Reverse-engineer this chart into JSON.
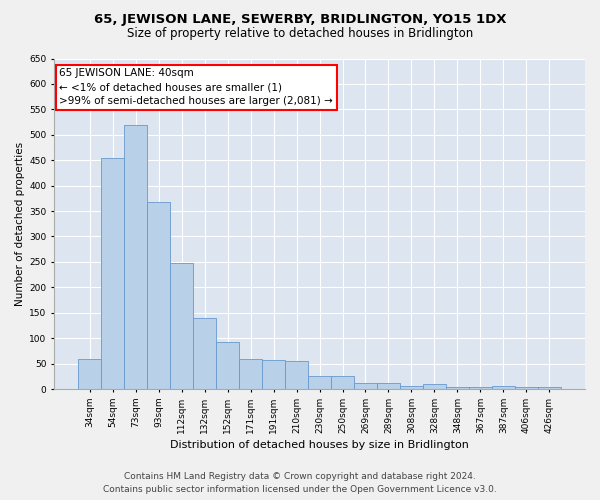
{
  "title": "65, JEWISON LANE, SEWERBY, BRIDLINGTON, YO15 1DX",
  "subtitle": "Size of property relative to detached houses in Bridlington",
  "xlabel": "Distribution of detached houses by size in Bridlington",
  "ylabel": "Number of detached properties",
  "categories": [
    "34sqm",
    "54sqm",
    "73sqm",
    "93sqm",
    "112sqm",
    "132sqm",
    "152sqm",
    "171sqm",
    "191sqm",
    "210sqm",
    "230sqm",
    "250sqm",
    "269sqm",
    "289sqm",
    "308sqm",
    "328sqm",
    "348sqm",
    "367sqm",
    "387sqm",
    "406sqm",
    "426sqm"
  ],
  "values": [
    60,
    455,
    520,
    368,
    248,
    140,
    92,
    60,
    57,
    55,
    26,
    26,
    11,
    12,
    6,
    9,
    4,
    4,
    5,
    4,
    4
  ],
  "bar_color": "#b8d0e8",
  "bar_edge_color": "#6699cc",
  "annotation_line1": "65 JEWISON LANE: 40sqm",
  "annotation_line2": "← <1% of detached houses are smaller (1)",
  "annotation_line3": ">99% of semi-detached houses are larger (2,081) →",
  "ylim": [
    0,
    650
  ],
  "yticks": [
    0,
    50,
    100,
    150,
    200,
    250,
    300,
    350,
    400,
    450,
    500,
    550,
    600,
    650
  ],
  "ax_background_color": "#dde6f0",
  "fig_background_color": "#f0f0f0",
  "grid_color": "#ffffff",
  "footer_line1": "Contains HM Land Registry data © Crown copyright and database right 2024.",
  "footer_line2": "Contains public sector information licensed under the Open Government Licence v3.0.",
  "title_fontsize": 9.5,
  "subtitle_fontsize": 8.5,
  "xlabel_fontsize": 8,
  "ylabel_fontsize": 7.5,
  "tick_fontsize": 6.5,
  "annotation_fontsize": 7.5,
  "footer_fontsize": 6.5
}
